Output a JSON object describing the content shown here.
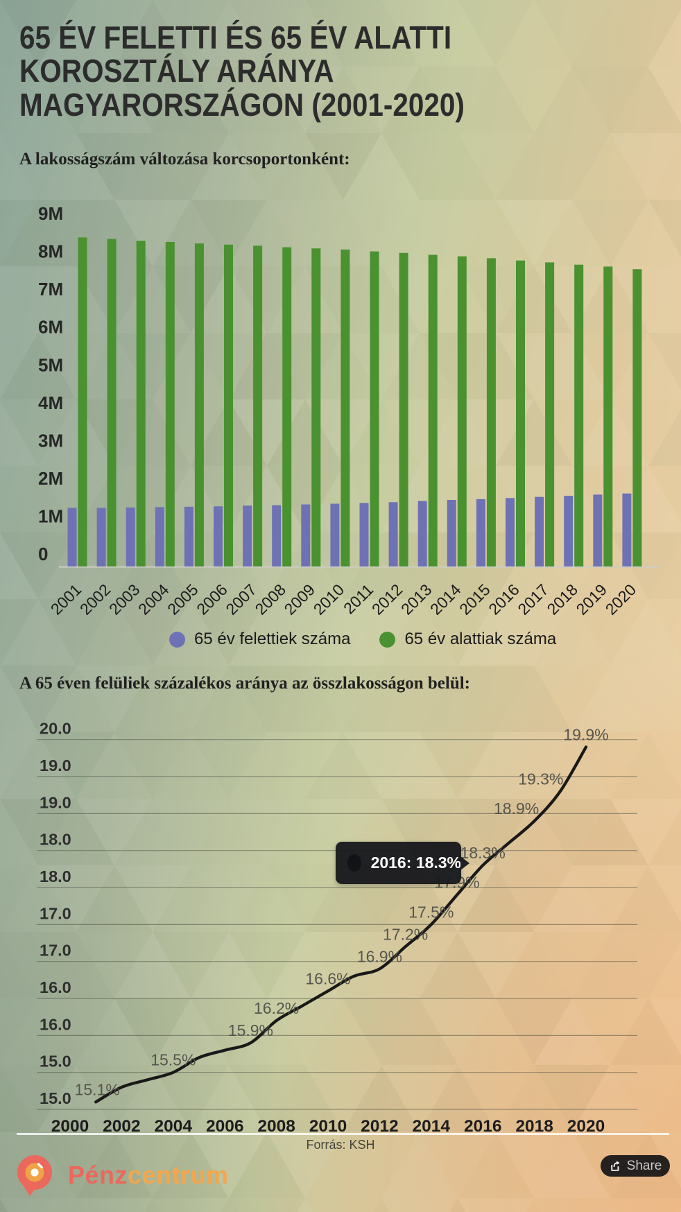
{
  "title_lines": [
    "65 ÉV FELETTI ÉS 65 ÉV ALATTI",
    "KOROSZTÁLY ARÁNYA",
    "MAGYARORSZÁGON (2001-2020)"
  ],
  "section1": {
    "heading": "A lakosságszám változása korcsoportonként:"
  },
  "section2": {
    "heading": "A 65 éven felüliek százalékos aránya az összlakosságon belül:"
  },
  "legend": [
    {
      "label": "65 év felettiek száma",
      "color": "#6e72b4"
    },
    {
      "label": "65 év alattiak száma",
      "color": "#4a9130"
    }
  ],
  "tooltip": {
    "text": "2016: 18.3%",
    "swatch_color": "#121316",
    "target_year": 2016
  },
  "footer": {
    "source": "Forrás: KSH",
    "brand_part1": "Pénz",
    "brand_part2": "centrum",
    "brand_color1": "#ea685c",
    "brand_color2": "#f2a74f",
    "share_label": "Share"
  },
  "chart_data": [
    {
      "type": "bar",
      "title": "A lakosságszám változása korcsoportonként:",
      "unit": "persons, millions",
      "categories": [
        2001,
        2002,
        2003,
        2004,
        2005,
        2006,
        2007,
        2008,
        2009,
        2010,
        2011,
        2012,
        2013,
        2014,
        2015,
        2016,
        2017,
        2018,
        2019,
        2020
      ],
      "series": [
        {
          "name": "65 év felettiek száma",
          "color": "#6e72b4",
          "values": [
            1.55,
            1.55,
            1.56,
            1.57,
            1.58,
            1.59,
            1.61,
            1.62,
            1.64,
            1.66,
            1.68,
            1.7,
            1.73,
            1.76,
            1.78,
            1.81,
            1.84,
            1.87,
            1.9,
            1.93
          ]
        },
        {
          "name": "65 év alattiak száma",
          "color": "#4a9130",
          "values": [
            8.7,
            8.66,
            8.61,
            8.58,
            8.54,
            8.51,
            8.48,
            8.44,
            8.41,
            8.38,
            8.33,
            8.29,
            8.24,
            8.2,
            8.15,
            8.09,
            8.04,
            7.98,
            7.93,
            7.86
          ]
        }
      ],
      "yticks": [
        "0",
        "1M",
        "2M",
        "3M",
        "4M",
        "5M",
        "6M",
        "7M",
        "8M",
        "9M"
      ],
      "ylim": [
        0,
        9
      ],
      "grid": false,
      "legend_position": "bottom"
    },
    {
      "type": "line",
      "title": "A 65 éven felüliek százalékos aránya az összlakosságon belül:",
      "unit": "percent",
      "x": [
        2001,
        2002,
        2003,
        2004,
        2005,
        2006,
        2007,
        2008,
        2009,
        2010,
        2011,
        2012,
        2013,
        2014,
        2015,
        2016,
        2017,
        2018,
        2019,
        2020
      ],
      "values": [
        15.1,
        15.3,
        15.4,
        15.5,
        15.7,
        15.8,
        15.9,
        16.2,
        16.4,
        16.6,
        16.8,
        16.9,
        17.2,
        17.5,
        17.9,
        18.3,
        18.6,
        18.9,
        19.3,
        19.9
      ],
      "point_labels": [
        {
          "year": 2001,
          "text": "15.1%",
          "dx": 2
        },
        {
          "year": 2004,
          "text": "15.5%",
          "dx": 0
        },
        {
          "year": 2007,
          "text": "15.9%",
          "dx": 0
        },
        {
          "year": 2008,
          "text": "16.2%",
          "dx": 0
        },
        {
          "year": 2010,
          "text": "16.6%",
          "dx": 0
        },
        {
          "year": 2012,
          "text": "16.9%",
          "dx": 0
        },
        {
          "year": 2013,
          "text": "17.2%",
          "dx": 0
        },
        {
          "year": 2014,
          "text": "17.5%",
          "dx": 0
        },
        {
          "year": 2015,
          "text": "17.9%",
          "dx": 0
        },
        {
          "year": 2016,
          "text": "18.3%",
          "dx": 0
        },
        {
          "year": 2018,
          "text": "18.9%",
          "dx": -26
        },
        {
          "year": 2019,
          "text": "19.3%",
          "dx": -28
        },
        {
          "year": 2020,
          "text": "19.9%",
          "dx": 0
        }
      ],
      "yticks_display": [
        "20.0",
        "19.0",
        "19.0",
        "18.0",
        "18.0",
        "17.0",
        "17.0",
        "16.0",
        "16.0",
        "15.0",
        "15.0"
      ],
      "xticks": [
        2000,
        2002,
        2004,
        2006,
        2008,
        2010,
        2012,
        2014,
        2016,
        2018,
        2020
      ],
      "ylim": [
        15.0,
        20.0
      ],
      "grid": true,
      "line_color": "#191919"
    }
  ]
}
